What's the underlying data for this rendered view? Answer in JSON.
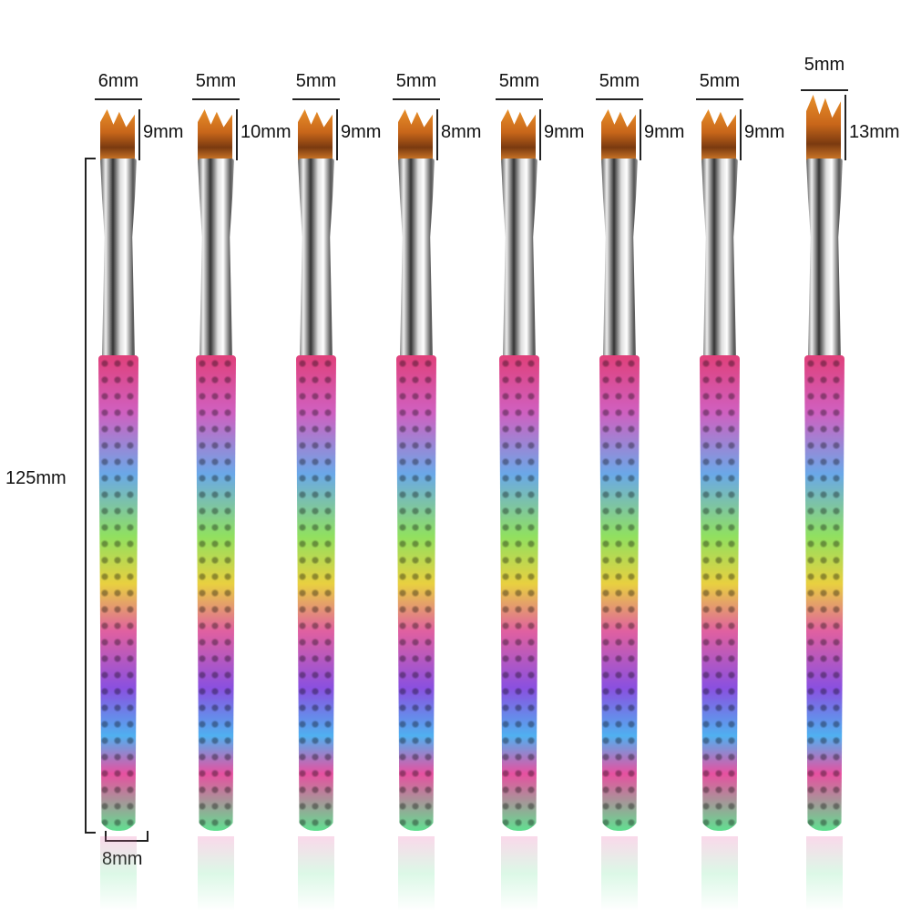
{
  "brushes": [
    {
      "width": "6mm",
      "height": "9mm"
    },
    {
      "width": "5mm",
      "height": "10mm"
    },
    {
      "width": "5mm",
      "height": "9mm"
    },
    {
      "width": "5mm",
      "height": "8mm"
    },
    {
      "width": "5mm",
      "height": "9mm"
    },
    {
      "width": "5mm",
      "height": "9mm"
    },
    {
      "width": "5mm",
      "height": "9mm"
    },
    {
      "width": "5mm",
      "height": "13mm"
    }
  ],
  "overall_length": "125mm",
  "handle_diameter": "8mm",
  "colors": {
    "bristle": "#c8661a",
    "ferrule": "#c0c0c0"
  }
}
